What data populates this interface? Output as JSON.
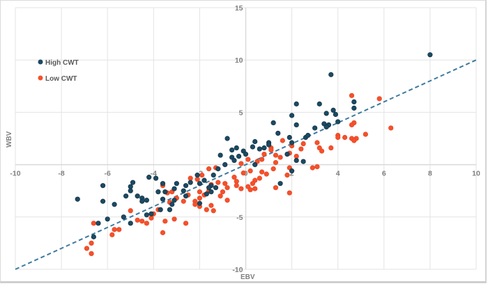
{
  "chart_data": {
    "type": "scatter",
    "title": "",
    "xlabel": "EBV",
    "ylabel": "WBV",
    "xlim": [
      -10,
      10
    ],
    "ylim": [
      -10,
      15
    ],
    "x_ticks": [
      -10,
      -8,
      -6,
      -4,
      -2,
      0,
      2,
      4,
      6,
      8,
      10
    ],
    "y_ticks": [
      -10,
      -5,
      0,
      5,
      10,
      15
    ],
    "grid": true,
    "legend_position": "upper-left inside",
    "colors": {
      "high": "#1b4a63",
      "low": "#f4512c",
      "trend": "#3d7aa0",
      "grid": "#e3e3e3",
      "axis": "#d9d9d9",
      "tick": "#7f7f7f"
    },
    "trendline": {
      "style": "dashed",
      "from": [
        -10,
        -10
      ],
      "to": [
        10,
        10
      ]
    },
    "series": [
      {
        "name": "High CWT",
        "color": "#1b4a63",
        "points": [
          [
            8.0,
            10.5
          ],
          [
            3.7,
            8.6
          ],
          [
            4.7,
            6.0
          ],
          [
            4.7,
            5.4
          ],
          [
            3.2,
            5.8
          ],
          [
            2.2,
            5.8
          ],
          [
            3.5,
            4.9
          ],
          [
            3.8,
            5.2
          ],
          [
            3.9,
            4.8
          ],
          [
            4.0,
            4.1
          ],
          [
            2.0,
            4.7
          ],
          [
            2.2,
            3.8
          ],
          [
            3.0,
            3.5
          ],
          [
            3.4,
            3.9
          ],
          [
            3.6,
            3.8
          ],
          [
            3.5,
            3.6
          ],
          [
            2.6,
            2.6
          ],
          [
            2.7,
            2.8
          ],
          [
            1.2,
            4.0
          ],
          [
            1.4,
            3.0
          ],
          [
            1.9,
            2.6
          ],
          [
            0.8,
            1.6
          ],
          [
            1.0,
            2.1
          ],
          [
            1.0,
            1.9
          ],
          [
            2.0,
            2.1
          ],
          [
            0.4,
            2.2
          ],
          [
            0.3,
            1.7
          ],
          [
            -0.1,
            1.3
          ],
          [
            -0.4,
            1.6
          ],
          [
            0.6,
            1.5
          ],
          [
            1.8,
            1.0
          ],
          [
            -0.8,
            2.5
          ],
          [
            -1.1,
            0.9
          ],
          [
            -0.6,
            0.7
          ],
          [
            -0.5,
            0.4
          ],
          [
            -0.3,
            0.8
          ],
          [
            -0.6,
            1.4
          ],
          [
            0.0,
            1.0
          ],
          [
            -0.9,
            0.0
          ],
          [
            -1.2,
            -0.4
          ],
          [
            0.4,
            0.0
          ],
          [
            2.0,
            -0.6
          ],
          [
            2.2,
            0.4
          ],
          [
            2.5,
            0.3
          ],
          [
            1.5,
            -1.8
          ],
          [
            -1.4,
            -1.0
          ],
          [
            -1.8,
            -1.5
          ],
          [
            -2.4,
            -1.7
          ],
          [
            -2.6,
            -2.0
          ],
          [
            -2.1,
            -1.0
          ],
          [
            -2.0,
            -1.8
          ],
          [
            -1.5,
            -2.0
          ],
          [
            -1.3,
            -2.2
          ],
          [
            -1.6,
            -2.2
          ],
          [
            -3.6,
            -1.8
          ],
          [
            -3.0,
            -1.8
          ],
          [
            -4.2,
            -1.2
          ],
          [
            -3.9,
            -1.3
          ],
          [
            -3.8,
            -2.6
          ],
          [
            -3.5,
            -2.6
          ],
          [
            -3.1,
            -2.3
          ],
          [
            -3.1,
            -3.4
          ],
          [
            -3.6,
            -3.3
          ],
          [
            -4.3,
            -3.4
          ],
          [
            -4.7,
            -3.0
          ],
          [
            -4.5,
            -3.2
          ],
          [
            -5.0,
            -2.1
          ],
          [
            -5.0,
            -2.5
          ],
          [
            -4.5,
            -3.5
          ],
          [
            -3.2,
            -3.8
          ],
          [
            -2.6,
            -3.0
          ],
          [
            -2.0,
            -3.7
          ],
          [
            -1.7,
            -2.8
          ],
          [
            -1.5,
            -2.6
          ],
          [
            -3.7,
            -4.3
          ],
          [
            -4.1,
            -4.7
          ],
          [
            -4.9,
            -1.7
          ],
          [
            -5.2,
            -3.0
          ],
          [
            -5.3,
            -5.0
          ],
          [
            -5.7,
            -3.8
          ],
          [
            -6.2,
            -2.0
          ],
          [
            -6.2,
            -3.5
          ],
          [
            -6.0,
            -5.2
          ],
          [
            -6.4,
            -5.6
          ],
          [
            -6.6,
            -6.9
          ],
          [
            -7.3,
            -3.3
          ],
          [
            -3.3,
            -4.3
          ],
          [
            -4.3,
            -4.8
          ],
          [
            -5.0,
            -5.6
          ],
          [
            -2.7,
            -2.5
          ]
        ]
      },
      {
        "name": "Low CWT",
        "color": "#f4512c",
        "points": [
          [
            4.6,
            6.6
          ],
          [
            5.8,
            6.3
          ],
          [
            4.7,
            4.0
          ],
          [
            4.6,
            3.8
          ],
          [
            6.3,
            3.5
          ],
          [
            5.2,
            2.9
          ],
          [
            4.8,
            2.5
          ],
          [
            4.0,
            2.8
          ],
          [
            4.0,
            2.6
          ],
          [
            4.3,
            2.6
          ],
          [
            4.6,
            2.5
          ],
          [
            4.7,
            2.3
          ],
          [
            3.1,
            2.1
          ],
          [
            1.6,
            2.3
          ],
          [
            2.0,
            1.8
          ],
          [
            2.5,
            2.0
          ],
          [
            3.2,
            1.6
          ],
          [
            3.7,
            1.6
          ],
          [
            2.4,
            1.5
          ],
          [
            3.3,
            1.3
          ],
          [
            1.1,
            1.6
          ],
          [
            1.1,
            1.4
          ],
          [
            1.9,
            1.1
          ],
          [
            1.3,
            0.9
          ],
          [
            0.8,
            1.0
          ],
          [
            2.2,
            0.8
          ],
          [
            1.5,
            0.7
          ],
          [
            0.7,
            0.5
          ],
          [
            0.1,
            0.5
          ],
          [
            0.5,
            0.3
          ],
          [
            -0.2,
            0.1
          ],
          [
            1.3,
            0.2
          ],
          [
            2.9,
            -0.3
          ],
          [
            3.1,
            -0.2
          ],
          [
            1.2,
            -0.4
          ],
          [
            1.9,
            -0.3
          ],
          [
            0.7,
            -0.7
          ],
          [
            0.2,
            -0.6
          ],
          [
            -0.1,
            -0.8
          ],
          [
            0.9,
            -0.9
          ],
          [
            1.8,
            -1.0
          ],
          [
            0.4,
            -1.5
          ],
          [
            0.6,
            -1.3
          ],
          [
            -0.5,
            -1.2
          ],
          [
            -0.4,
            -1.6
          ],
          [
            -0.4,
            -2.0
          ],
          [
            0.1,
            -2.1
          ],
          [
            1.3,
            -2.2
          ],
          [
            0.3,
            -1.8
          ],
          [
            1.9,
            -2.7
          ],
          [
            0.2,
            -2.4
          ],
          [
            -0.2,
            -2.3
          ],
          [
            0.4,
            -2.3
          ],
          [
            -0.9,
            -1.8
          ],
          [
            -1.2,
            -1.7
          ],
          [
            -1.5,
            -1.9
          ],
          [
            -0.8,
            -2.2
          ],
          [
            -1.0,
            -2.6
          ],
          [
            -1.6,
            -2.5
          ],
          [
            -1.8,
            -2.9
          ],
          [
            -1.9,
            -1.0
          ],
          [
            -2.1,
            -1.4
          ],
          [
            -2.4,
            -1.3
          ],
          [
            -1.6,
            -0.4
          ],
          [
            -1.3,
            -0.3
          ],
          [
            -2.0,
            -2.6
          ],
          [
            -2.5,
            -2.9
          ],
          [
            -2.7,
            -3.5
          ],
          [
            -2.2,
            -3.5
          ],
          [
            -2.0,
            -3.2
          ],
          [
            -2.2,
            -3.8
          ],
          [
            -2.0,
            -4.0
          ],
          [
            -1.7,
            -4.3
          ],
          [
            -1.5,
            -3.9
          ],
          [
            -1.4,
            -4.4
          ],
          [
            -0.8,
            -3.4
          ],
          [
            -1.1,
            -3.0
          ],
          [
            -3.6,
            -2.0
          ],
          [
            -3.2,
            -2.6
          ],
          [
            -3.0,
            -3.2
          ],
          [
            -3.3,
            -3.6
          ],
          [
            -3.8,
            -4.3
          ],
          [
            -4.0,
            -4.7
          ],
          [
            -4.1,
            -5.1
          ],
          [
            -3.5,
            -5.4
          ],
          [
            -3.1,
            -5.2
          ],
          [
            -2.6,
            -5.6
          ],
          [
            -4.5,
            -5.4
          ],
          [
            -4.3,
            -5.6
          ],
          [
            -5.0,
            -4.4
          ],
          [
            -4.7,
            -5.3
          ],
          [
            -3.6,
            -6.5
          ],
          [
            -5.5,
            -6.2
          ],
          [
            -5.7,
            -6.2
          ],
          [
            -5.8,
            -6.7
          ],
          [
            -6.6,
            -5.6
          ],
          [
            -6.7,
            -7.5
          ],
          [
            -6.9,
            -8.0
          ],
          [
            -6.7,
            -8.5
          ],
          [
            -3.4,
            -2.7
          ]
        ]
      }
    ]
  },
  "legend": {
    "items": [
      {
        "label": "High CWT",
        "color": "#1b4a63"
      },
      {
        "label": "Low CWT",
        "color": "#f4512c"
      }
    ]
  },
  "axes": {
    "x_title": "EBV",
    "y_title": "WBV",
    "x_tick_labels": [
      "-10",
      "-8",
      "-6",
      "-4",
      "-2",
      "0",
      "2",
      "4",
      "6",
      "8",
      "10"
    ],
    "y_tick_labels": [
      "15",
      "10",
      "5",
      "-5",
      "-10"
    ]
  }
}
